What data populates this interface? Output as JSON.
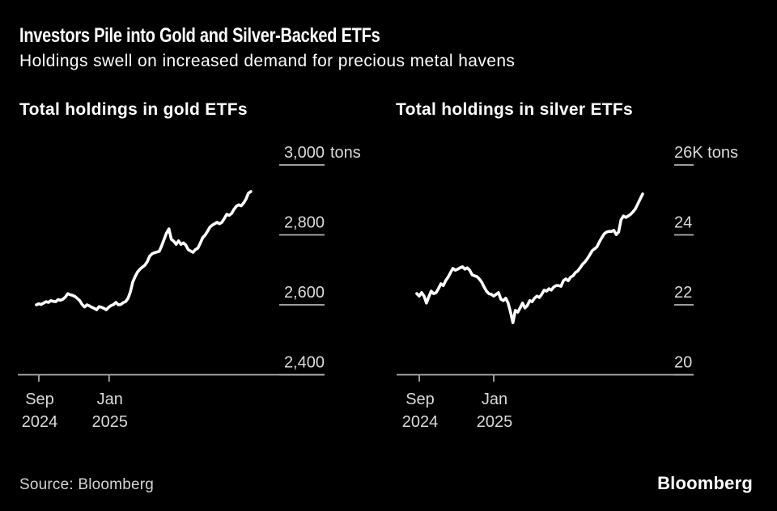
{
  "header": {
    "title": "Investors Pile into Gold and Silver-Backed ETFs",
    "subtitle": "Holdings swell on increased demand for precious metal havens"
  },
  "footer": {
    "source": "Source: Bloomberg",
    "logo": "Bloomberg"
  },
  "colors": {
    "background": "#000000",
    "title_text": "#ffffff",
    "axis_text": "#d9d9d9",
    "axis_line": "#b3b3b3",
    "series_line": "#ffffff"
  },
  "chart_data": [
    {
      "id": "gold",
      "type": "line",
      "title": "Total holdings in gold ETFs",
      "unit": "tons",
      "ylim": [
        2400,
        3000
      ],
      "yticks": [
        {
          "value": 3000,
          "label": "3,000",
          "suffix": " tons"
        },
        {
          "value": 2800,
          "label": "2,800"
        },
        {
          "value": 2600,
          "label": "2,600"
        },
        {
          "value": 2400,
          "label": "2,400"
        }
      ],
      "xticks": [
        {
          "line1": "Sep",
          "line2": "2024",
          "month": 0
        },
        {
          "line1": "Jan",
          "line2": "2025",
          "month": 4
        }
      ],
      "x_unit": "months since Sep 2024",
      "x_start": -0.14,
      "x_end": 12.07,
      "values": [
        2600,
        2603,
        2601,
        2605,
        2609,
        2607,
        2612,
        2610,
        2609,
        2615,
        2613,
        2616,
        2622,
        2632,
        2629,
        2627,
        2624,
        2618,
        2612,
        2601,
        2594,
        2600,
        2597,
        2593,
        2590,
        2586,
        2595,
        2593,
        2590,
        2586,
        2593,
        2598,
        2601,
        2607,
        2600,
        2601,
        2606,
        2609,
        2618,
        2637,
        2665,
        2681,
        2694,
        2702,
        2708,
        2713,
        2723,
        2739,
        2746,
        2749,
        2751,
        2753,
        2769,
        2787,
        2805,
        2817,
        2787,
        2782,
        2773,
        2783,
        2773,
        2777,
        2771,
        2758,
        2754,
        2750,
        2758,
        2762,
        2776,
        2792,
        2799,
        2810,
        2822,
        2828,
        2832,
        2836,
        2832,
        2836,
        2847,
        2859,
        2856,
        2861,
        2873,
        2882,
        2886,
        2883,
        2891,
        2903,
        2919,
        2924
      ]
    },
    {
      "id": "silver",
      "type": "line",
      "title": "Total holdings in silver ETFs",
      "unit": "K tons",
      "ylim": [
        20,
        26
      ],
      "yticks": [
        {
          "value": 26,
          "label": "26K",
          "suffix": " tons"
        },
        {
          "value": 24,
          "label": "24"
        },
        {
          "value": 22,
          "label": "22"
        },
        {
          "value": 20,
          "label": "20"
        }
      ],
      "xticks": [
        {
          "line1": "Sep",
          "line2": "2024",
          "month": 0
        },
        {
          "line1": "Jan",
          "line2": "2025",
          "month": 4
        }
      ],
      "x_unit": "months since Sep 2024",
      "x_start": -0.13,
      "x_end": 12.0,
      "values": [
        22.32,
        22.25,
        22.35,
        22.25,
        22.05,
        22.23,
        22.39,
        22.32,
        22.35,
        22.46,
        22.6,
        22.55,
        22.69,
        22.79,
        22.92,
        23.04,
        22.99,
        23.02,
        23.06,
        23.09,
        23.02,
        23.06,
        22.99,
        22.86,
        22.83,
        22.81,
        22.74,
        22.65,
        22.51,
        22.39,
        22.32,
        22.3,
        22.25,
        22.3,
        22.35,
        22.16,
        22.12,
        22.19,
        22.05,
        21.79,
        21.49,
        21.84,
        21.79,
        21.91,
        22.05,
        21.91,
        21.98,
        22.12,
        22.09,
        22.19,
        22.25,
        22.21,
        22.3,
        22.42,
        22.39,
        22.46,
        22.42,
        22.51,
        22.55,
        22.55,
        22.53,
        22.69,
        22.74,
        22.69,
        22.79,
        22.83,
        22.92,
        22.97,
        23.06,
        23.16,
        23.23,
        23.32,
        23.43,
        23.55,
        23.6,
        23.66,
        23.8,
        23.92,
        24.03,
        24.08,
        24.1,
        24.1,
        24.13,
        24.01,
        24.08,
        24.43,
        24.54,
        24.5,
        24.54,
        24.59,
        24.66,
        24.75,
        24.89,
        25.03,
        25.17
      ]
    }
  ]
}
